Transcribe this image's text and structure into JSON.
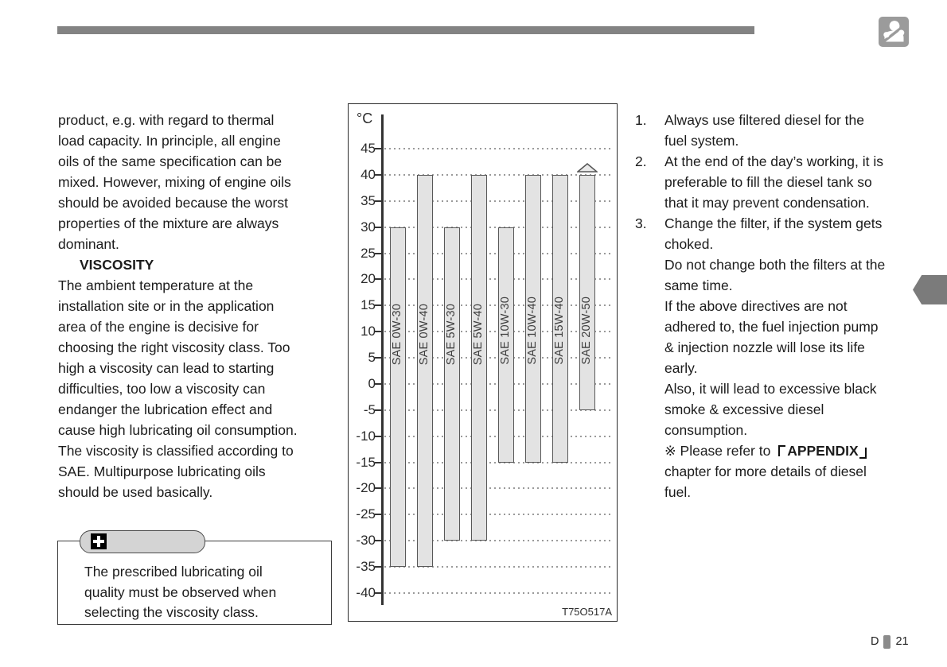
{
  "header": {
    "icon": "operator-seat-icon"
  },
  "left_column": {
    "para1_lines": [
      "product, e.g. with regard to thermal",
      "load capacity. In principle, all engine",
      "oils of the same specification can be",
      "mixed. However, mixing of engine oils",
      "should be avoided because the worst",
      "properties of the mixture are always",
      "dominant."
    ],
    "heading": "VISCOSITY",
    "para2_lines": [
      "The ambient temperature at the",
      "installation site or in the application",
      "area of the engine is decisive for",
      "choosing the right viscosity class. Too",
      "high a viscosity can lead to starting",
      "difficulties, too low a viscosity can",
      "endanger the lubrication effect and",
      "cause high lubricating oil consumption.",
      "The viscosity is classified according to",
      "SAE. Multipurpose lubricating oils",
      "should be used basically."
    ],
    "note": {
      "icon": "plus-icon",
      "lines": [
        "The prescribed lubricating oil",
        "quality must be observed when",
        "selecting the viscosity class."
      ]
    }
  },
  "chart_data": {
    "type": "bar",
    "title": "SAE viscosity classes vs ambient temperature",
    "unit_label": "°C",
    "y_axis": {
      "max": 45,
      "min": -40,
      "step": 5
    },
    "grid": "dotted horizontal line every 5 °C",
    "bars": [
      {
        "label": "SAE 0W-30",
        "max": 30,
        "min": -35
      },
      {
        "label": "SAE 0W-40",
        "max": 40,
        "min": -35
      },
      {
        "label": "SAE 5W-30",
        "max": 30,
        "min": -30
      },
      {
        "label": "SAE 5W-40",
        "max": 40,
        "min": -30
      },
      {
        "label": "SAE 10W-30",
        "max": 30,
        "min": -15
      },
      {
        "label": "SAE 10W-40",
        "max": 40,
        "min": -15
      },
      {
        "label": "SAE 15W-40",
        "max": 40,
        "min": -15
      },
      {
        "label": "SAE 20W-50",
        "max": 40,
        "min": -5,
        "above_max_arrow": true
      }
    ],
    "figure_code": "T75O517A"
  },
  "right_column": {
    "items": [
      {
        "number": "1.",
        "lines": [
          "Always use filtered diesel for the",
          "fuel system."
        ]
      },
      {
        "number": "2.",
        "lines": [
          "At the end of the day’s working, it is",
          "preferable to fill the diesel tank so",
          "that it may prevent condensation."
        ]
      },
      {
        "number": "3.",
        "lines": [
          "Change the filter, if the system gets",
          "choked.",
          "Do not change both the filters at the",
          "same time.",
          "If the above directives are not",
          "adhered to, the fuel injection pump",
          "& injection nozzle will lose its life",
          "early.",
          "Also, it will lead to excessive black",
          "smoke & excessive diesel",
          "consumption."
        ]
      }
    ],
    "appendix_note": {
      "prefix": "※ Please refer to ",
      "bracket_open": "「",
      "bold": "APPENDIX",
      "bracket_close": "」",
      "lines_after": [
        "chapter for more details of diesel",
        "fuel."
      ]
    }
  },
  "footer": {
    "section_label": "D",
    "divider_icon": "page-divider-bar",
    "page_number": "21"
  }
}
